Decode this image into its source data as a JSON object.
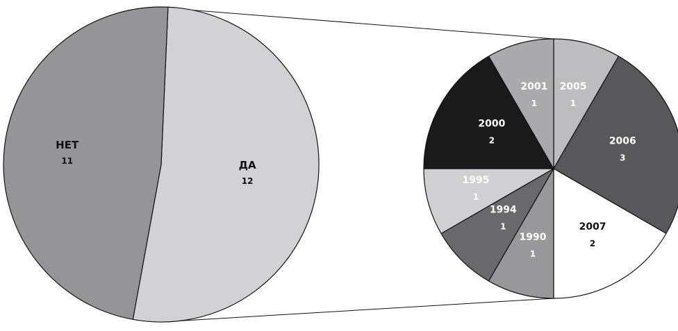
{
  "chart_data": [
    {
      "type": "pie",
      "categories": [
        "ДА",
        "НЕТ"
      ],
      "values": [
        12,
        11
      ],
      "colors": [
        "#d2d2d4",
        "#959597"
      ],
      "label_colors": [
        "#111111",
        "#111111"
      ]
    },
    {
      "type": "pie",
      "categories": [
        "2005",
        "2006",
        "2007",
        "1990",
        "1994",
        "1995",
        "2000",
        "2001"
      ],
      "values": [
        1,
        3,
        2,
        1,
        1,
        1,
        2,
        1
      ],
      "colors": [
        "#bdbdbf",
        "#58585a",
        "#ffffff",
        "#98989a",
        "#69696b",
        "#d0d0d2",
        "#1b1a1b",
        "#aaaaac"
      ],
      "label_colors": [
        "#ffffff",
        "#ffffff",
        "#111111",
        "#ffffff",
        "#ffffff",
        "#ffffff",
        "#ffffff",
        "#ffffff"
      ]
    }
  ]
}
